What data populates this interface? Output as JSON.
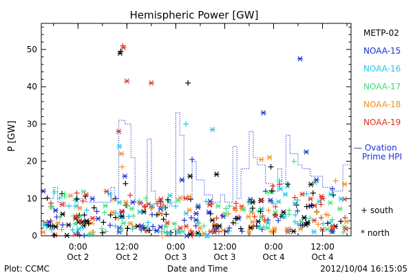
{
  "chart_data": {
    "type": "scatter",
    "title": "Hemispheric Power [GW]",
    "ylabel": "P [GW]",
    "xlabel": "Date and Time",
    "ylim": [
      0,
      57
    ],
    "yticks": [
      0,
      10,
      20,
      30,
      40,
      50
    ],
    "xlim": [
      "2012-10-01T15:00",
      "2012-10-04T19:00"
    ],
    "xticks": [
      {
        "t": "2012-10-02T00:00",
        "line1": "0:00",
        "line2": "Oct 2"
      },
      {
        "t": "2012-10-02T12:00",
        "line1": "12:00",
        "line2": "Oct 2"
      },
      {
        "t": "2012-10-03T00:00",
        "line1": "0:00",
        "line2": "Oct 3"
      },
      {
        "t": "2012-10-03T12:00",
        "line1": "12:00",
        "line2": "Oct 3"
      },
      {
        "t": "2012-10-04T00:00",
        "line1": "0:00",
        "line2": "Oct 4"
      },
      {
        "t": "2012-10-04T12:00",
        "line1": "12:00",
        "line2": "Oct 4"
      }
    ],
    "legend": {
      "placement": "right",
      "satellites": [
        {
          "name": "METP-02",
          "color": "#000000"
        },
        {
          "name": "NOAA-15",
          "color": "#1a2fd6"
        },
        {
          "name": "NOAA-16",
          "color": "#1cc8e8"
        },
        {
          "name": "NOAA-17",
          "color": "#3ee07a"
        },
        {
          "name": "NOAA-18",
          "color": "#f09020"
        },
        {
          "name": "NOAA-19",
          "color": "#e03020"
        }
      ],
      "ovation_line1": "— Ovation",
      "ovation_line2": "Prime HPI",
      "ovation_color": "#1a2fd6",
      "south_label": "+ south",
      "north_label": "* north"
    },
    "ovation_steps": [
      [
        "2012-10-01T15:00",
        10
      ],
      [
        "2012-10-01T18:00",
        13
      ],
      [
        "2012-10-01T19:00",
        9
      ],
      [
        "2012-10-01T21:00",
        8
      ],
      [
        "2012-10-02T00:00",
        10
      ],
      [
        "2012-10-02T02:00",
        9
      ],
      [
        "2012-10-02T05:00",
        9
      ],
      [
        "2012-10-02T08:00",
        13
      ],
      [
        "2012-10-02T09:00",
        10
      ],
      [
        "2012-10-02T10:00",
        31
      ],
      [
        "2012-10-02T11:30",
        30
      ],
      [
        "2012-10-02T13:00",
        21
      ],
      [
        "2012-10-02T14:00",
        9
      ],
      [
        "2012-10-02T16:00",
        8
      ],
      [
        "2012-10-02T17:00",
        26
      ],
      [
        "2012-10-02T18:00",
        12
      ],
      [
        "2012-10-02T19:00",
        9
      ],
      [
        "2012-10-02T21:00",
        8
      ],
      [
        "2012-10-02T23:00",
        9
      ],
      [
        "2012-10-03T00:00",
        33
      ],
      [
        "2012-10-03T01:00",
        27
      ],
      [
        "2012-10-03T02:00",
        10
      ],
      [
        "2012-10-03T04:00",
        20
      ],
      [
        "2012-10-03T05:00",
        15
      ],
      [
        "2012-10-03T07:00",
        11
      ],
      [
        "2012-10-03T09:00",
        9
      ],
      [
        "2012-10-03T11:00",
        11
      ],
      [
        "2012-10-03T12:00",
        9
      ],
      [
        "2012-10-03T13:00",
        9
      ],
      [
        "2012-10-03T14:00",
        24
      ],
      [
        "2012-10-03T15:00",
        10
      ],
      [
        "2012-10-03T16:00",
        18
      ],
      [
        "2012-10-03T18:00",
        28
      ],
      [
        "2012-10-03T19:00",
        21
      ],
      [
        "2012-10-03T20:00",
        19
      ],
      [
        "2012-10-03T22:00",
        14
      ],
      [
        "2012-10-04T00:00",
        12
      ],
      [
        "2012-10-04T01:00",
        18
      ],
      [
        "2012-10-04T02:00",
        14
      ],
      [
        "2012-10-04T03:00",
        27
      ],
      [
        "2012-10-04T04:00",
        22
      ],
      [
        "2012-10-04T06:00",
        19
      ],
      [
        "2012-10-04T07:00",
        18
      ],
      [
        "2012-10-04T09:00",
        16
      ],
      [
        "2012-10-04T12:00",
        13
      ],
      [
        "2012-10-04T14:00",
        12
      ],
      [
        "2012-10-04T16:00",
        12
      ],
      [
        "2012-10-04T17:00",
        19
      ],
      [
        "2012-10-04T19:00",
        19
      ]
    ],
    "scatter_seed": 7,
    "noise_ranges": [
      [
        "2012-10-01T15:00",
        "2012-10-02T10:00",
        0,
        12
      ],
      [
        "2012-10-02T10:00",
        "2012-10-02T19:00",
        1,
        12
      ],
      [
        "2012-10-02T19:00",
        "2012-10-03T08:00",
        0,
        11
      ],
      [
        "2012-10-03T08:00",
        "2012-10-03T22:00",
        1,
        10
      ],
      [
        "2012-10-03T22:00",
        "2012-10-04T19:00",
        1,
        15
      ]
    ],
    "notable_points": [
      {
        "t": "2012-10-02T10:30",
        "v": 49.5,
        "sat": 0,
        "m": "+"
      },
      {
        "t": "2012-10-02T10:20",
        "v": 49,
        "sat": 0,
        "m": "*"
      },
      {
        "t": "2012-10-02T11:00",
        "v": 51,
        "sat": 5,
        "m": "+"
      },
      {
        "t": "2012-10-02T11:10",
        "v": 50.5,
        "sat": 5,
        "m": "*"
      },
      {
        "t": "2012-10-02T12:00",
        "v": 41.5,
        "sat": 5,
        "m": "*"
      },
      {
        "t": "2012-10-02T18:00",
        "v": 41,
        "sat": 5,
        "m": "*"
      },
      {
        "t": "2012-10-03T03:00",
        "v": 41,
        "sat": 0,
        "m": "+"
      },
      {
        "t": "2012-10-04T06:30",
        "v": 47.5,
        "sat": 1,
        "m": "*"
      },
      {
        "t": "2012-10-03T21:30",
        "v": 33,
        "sat": 1,
        "m": "*"
      },
      {
        "t": "2012-10-03T09:00",
        "v": 28.5,
        "sat": 2,
        "m": "*"
      },
      {
        "t": "2012-10-03T02:30",
        "v": 30,
        "sat": 2,
        "m": "+"
      },
      {
        "t": "2012-10-02T10:00",
        "v": 28,
        "sat": 5,
        "m": "*"
      },
      {
        "t": "2012-10-02T10:10",
        "v": 24,
        "sat": 2,
        "m": "*"
      },
      {
        "t": "2012-10-02T10:40",
        "v": 22,
        "sat": 4,
        "m": "*"
      },
      {
        "t": "2012-10-02T10:50",
        "v": 18.5,
        "sat": 4,
        "m": "+"
      },
      {
        "t": "2012-10-02T11:30",
        "v": 16,
        "sat": 1,
        "m": "*"
      },
      {
        "t": "2012-10-02T11:40",
        "v": 14,
        "sat": 0,
        "m": "+"
      },
      {
        "t": "2012-10-04T08:00",
        "v": 22.5,
        "sat": 1,
        "m": "*"
      },
      {
        "t": "2012-10-03T23:00",
        "v": 21,
        "sat": 4,
        "m": "*"
      },
      {
        "t": "2012-10-03T23:20",
        "v": 18.5,
        "sat": 0,
        "m": "+"
      },
      {
        "t": "2012-10-03T21:00",
        "v": 20.5,
        "sat": 4,
        "m": "*"
      },
      {
        "t": "2012-10-03T10:00",
        "v": 16.5,
        "sat": 0,
        "m": "*"
      },
      {
        "t": "2012-10-03T04:00",
        "v": 20.5,
        "sat": 1,
        "m": "+"
      },
      {
        "t": "2012-10-03T01:30",
        "v": 15,
        "sat": 1,
        "m": "*"
      },
      {
        "t": "2012-10-03T03:30",
        "v": 16,
        "sat": 0,
        "m": "*"
      },
      {
        "t": "2012-10-04T05:00",
        "v": 20,
        "sat": 3,
        "m": "+"
      },
      {
        "t": "2012-10-04T10:30",
        "v": 15,
        "sat": 1,
        "m": "*"
      },
      {
        "t": "2012-10-04T12:00",
        "v": 10,
        "sat": 5,
        "m": "*"
      },
      {
        "t": "2012-10-01T15:30",
        "v": 12,
        "sat": 1,
        "m": "*"
      },
      {
        "t": "2012-10-02T02:00",
        "v": 11,
        "sat": 5,
        "m": "*"
      }
    ]
  },
  "footer": {
    "left": "Plot: CCMC",
    "right": "2012/10/04 16:15:05"
  }
}
